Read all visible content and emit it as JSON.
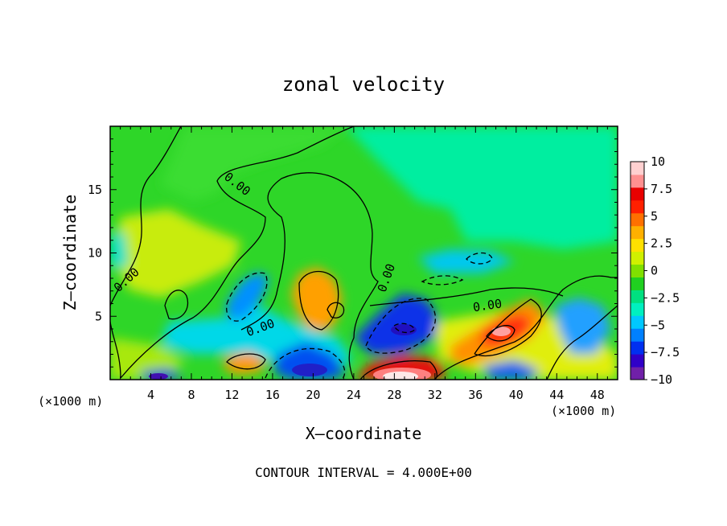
{
  "chart_data": {
    "type": "heatmap",
    "title": "zonal velocity",
    "xlabel": "X–coordinate",
    "ylabel": "Z–coordinate",
    "x_unit_left": "(×1000 m)",
    "x_unit_right": "(×1000 m)",
    "footer": "CONTOUR INTERVAL = 4.000E+00",
    "xlim": [
      0,
      50
    ],
    "ylim": [
      0,
      20
    ],
    "x_ticks": [
      4,
      8,
      12,
      16,
      20,
      24,
      28,
      32,
      36,
      40,
      44,
      48
    ],
    "y_ticks": [
      5,
      10,
      15
    ],
    "zlim": [
      -10,
      10
    ],
    "colorbar_ticks": [
      "10",
      "7.5",
      "5",
      "2.5",
      "0",
      "−2.5",
      "−5",
      "−7.5",
      "−10"
    ],
    "colorbar_colors": [
      "#7020a8",
      "#3000c8",
      "#0030f0",
      "#0080ff",
      "#00c8ff",
      "#00f0c0",
      "#00e080",
      "#20d020",
      "#80e000",
      "#d0f000",
      "#ffe000",
      "#ffb000",
      "#ff7000",
      "#ff2000",
      "#e80000",
      "#ff9090",
      "#ffd0d0"
    ],
    "contour_labels": [
      "0.00",
      "0.00",
      "0.00",
      "0.00",
      "0.00"
    ],
    "features": [
      {
        "x": 29,
        "y": 0.6,
        "value": 10
      },
      {
        "x": 38.5,
        "y": 3.8,
        "value": 8
      },
      {
        "x": 40,
        "y": 5,
        "value": 6
      },
      {
        "x": 20,
        "y": 6,
        "value": 4
      },
      {
        "x": 14,
        "y": 2,
        "value": 4
      },
      {
        "x": 29.5,
        "y": 4.5,
        "value": -8
      },
      {
        "x": 20,
        "y": 1.5,
        "value": -7
      },
      {
        "x": 15,
        "y": 7,
        "value": -4
      },
      {
        "x": 36,
        "y": 10,
        "value": -3
      },
      {
        "x": 5,
        "y": 0.3,
        "value": -6
      }
    ]
  }
}
